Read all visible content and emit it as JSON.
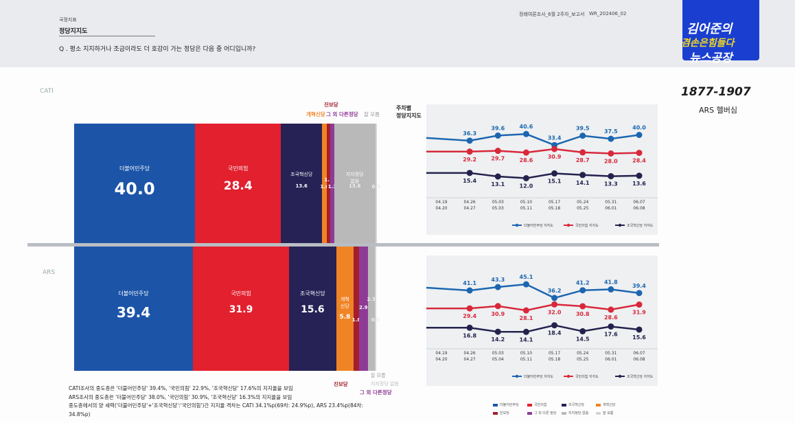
{
  "header": {
    "category": "국정지표",
    "title": "정당지지도",
    "question": "Q . 평소 지지하거나 조금이라도 더 호감이 가는 정당은 다음 중 어디입니까?",
    "doc_name": "정례여론조사_6월 2주차_보고서",
    "doc_code": "WR_202406_02"
  },
  "brand": {
    "line1": "김어준의",
    "line2": "겸손은힘들다",
    "line3": "뉴스공장",
    "phone": "1877-1907",
    "sub": "ARS 헬버심"
  },
  "sections": {
    "cati": "CATI",
    "ars": "ARS"
  },
  "labels": {
    "jinbo_top": "진보당",
    "gaehyuk_top": "개혁신당",
    "other_top": "그 외 다른정당",
    "dontknow_top": "잘 모름",
    "jinbo_bottom": "진보당",
    "other_bottom": "그 외 다른정당",
    "dontknow_bottom": "잘 모름",
    "none_bottom": "지지정당 없음"
  },
  "chart_data": [
    {
      "type": "bar",
      "title": "CATI",
      "stacked": true,
      "categories": [
        "더불어민주당",
        "국민의힘",
        "조국혁신당",
        "개혁신당",
        "진보당",
        "그 외 다른정당",
        "지지정당 없음",
        "잘 모름"
      ],
      "values": [
        40.0,
        28.4,
        13.6,
        1.6,
        1.1,
        1.3,
        13.6,
        0.3
      ],
      "value_labels": [
        "40.0",
        "28.4",
        "13.6",
        "1.6",
        "1.1",
        "1.3",
        "13.6",
        "0.3"
      ],
      "inner_labels": [
        "더불어민주당",
        "국민의힘",
        "조국혁신당",
        "",
        "",
        "",
        "지지정당\n없음",
        ""
      ],
      "colors": [
        "#1c55a8",
        "#e2202e",
        "#262255",
        "#f08425",
        "#a31f2d",
        "#8e3b96",
        "#b9b9b9",
        "#d4d4d4"
      ]
    },
    {
      "type": "bar",
      "title": "ARS",
      "stacked": true,
      "categories": [
        "더불어민주당",
        "국민의힘",
        "조국혁신당",
        "개혁신당",
        "진보당",
        "그 외 다른정당",
        "지지정당 없음",
        "잘 모름"
      ],
      "values": [
        39.4,
        31.9,
        15.6,
        5.8,
        1.8,
        2.9,
        2.3,
        0.5
      ],
      "value_labels": [
        "39.4",
        "31.9",
        "15.6",
        "5.8",
        "1.8",
        "2.9",
        "2.3",
        "0.5"
      ],
      "inner_labels": [
        "더불어민주당",
        "국민의힘",
        "조국혁신당",
        "개혁\n신당",
        "",
        "",
        "",
        ""
      ],
      "colors": [
        "#1c55a8",
        "#e2202e",
        "#262255",
        "#f08425",
        "#a31f2d",
        "#8e3b96",
        "#b9b9b9",
        "#d4d4d4"
      ]
    },
    {
      "type": "line",
      "title": "주차별\n정당지지도",
      "x": [
        "04.19\n04.20",
        "04.26\n04.27",
        "05.03\n05.03",
        "05.10\n05.11",
        "05.17\n05.18",
        "05.24\n05.25",
        "05.31\n06.01",
        "06.07\n06.08"
      ],
      "series": [
        {
          "name": "더불어민주당 지지도",
          "color": "#1c66b0",
          "values": [
            null,
            36.3,
            39.6,
            40.6,
            33.4,
            39.5,
            37.5,
            40.0
          ]
        },
        {
          "name": "국민의힘 지지도",
          "color": "#d8283a",
          "values": [
            null,
            29.2,
            29.7,
            28.6,
            30.9,
            28.7,
            28.0,
            28.4
          ]
        },
        {
          "name": "조국혁신당 지지도",
          "color": "#24224d",
          "values": [
            null,
            15.4,
            13.1,
            12.0,
            15.1,
            14.1,
            13.3,
            13.6
          ]
        }
      ]
    },
    {
      "type": "line",
      "x": [
        "04.19\n04.20",
        "04.26\n04.27",
        "05.03\n05.04",
        "05.10\n05.11",
        "05.17\n05.18",
        "05.24\n05.25",
        "05.31\n06.01",
        "06.07\n06.08"
      ],
      "series": [
        {
          "name": "더불어민주당 지지도",
          "color": "#1c66b0",
          "values": [
            null,
            41.1,
            43.3,
            45.1,
            36.2,
            41.2,
            41.8,
            39.4
          ]
        },
        {
          "name": "국민의힘 지지도",
          "color": "#d8283a",
          "values": [
            null,
            29.4,
            30.9,
            28.1,
            32.0,
            30.8,
            28.6,
            31.9
          ]
        },
        {
          "name": "조국혁신당 지지도",
          "color": "#24224d",
          "values": [
            null,
            16.8,
            14.2,
            14.1,
            18.4,
            14.5,
            17.6,
            15.6
          ]
        }
      ]
    }
  ],
  "bottom_legend": [
    {
      "label": "더불어민주당",
      "color": "#1c55a8"
    },
    {
      "label": "국민의힘",
      "color": "#e2202e"
    },
    {
      "label": "조국혁신당",
      "color": "#262255"
    },
    {
      "label": "개혁신당",
      "color": "#f08425"
    },
    {
      "label": "진보당",
      "color": "#a31f2d"
    },
    {
      "label": "그 외 다른 정당",
      "color": "#8e3b96"
    },
    {
      "label": "지지정당 없음",
      "color": "#b9b9b9"
    },
    {
      "label": "잘 모름",
      "color": "#d4d4d4"
    }
  ],
  "notes": [
    "CATI조사의 중도층은 '더불어민주당' 39.4%, '국민의힘' 22.9%, '조국혁신당' 17.6%의 지지율을 보임",
    "ARS조사의 중도층은 '더불어민주당' 38.0%, '국민의힘' 30.9%, '조국혁신당' 16.3%의 지지율을 보임",
    "중도층에서의 양 세력('더불어민주당'+'조국혁신당':'국민의힘')간 지지율 격차는 CATI 34.1%p(69차: 24.9%p), ARS 23.4%p(84차: 34.8%p)"
  ]
}
